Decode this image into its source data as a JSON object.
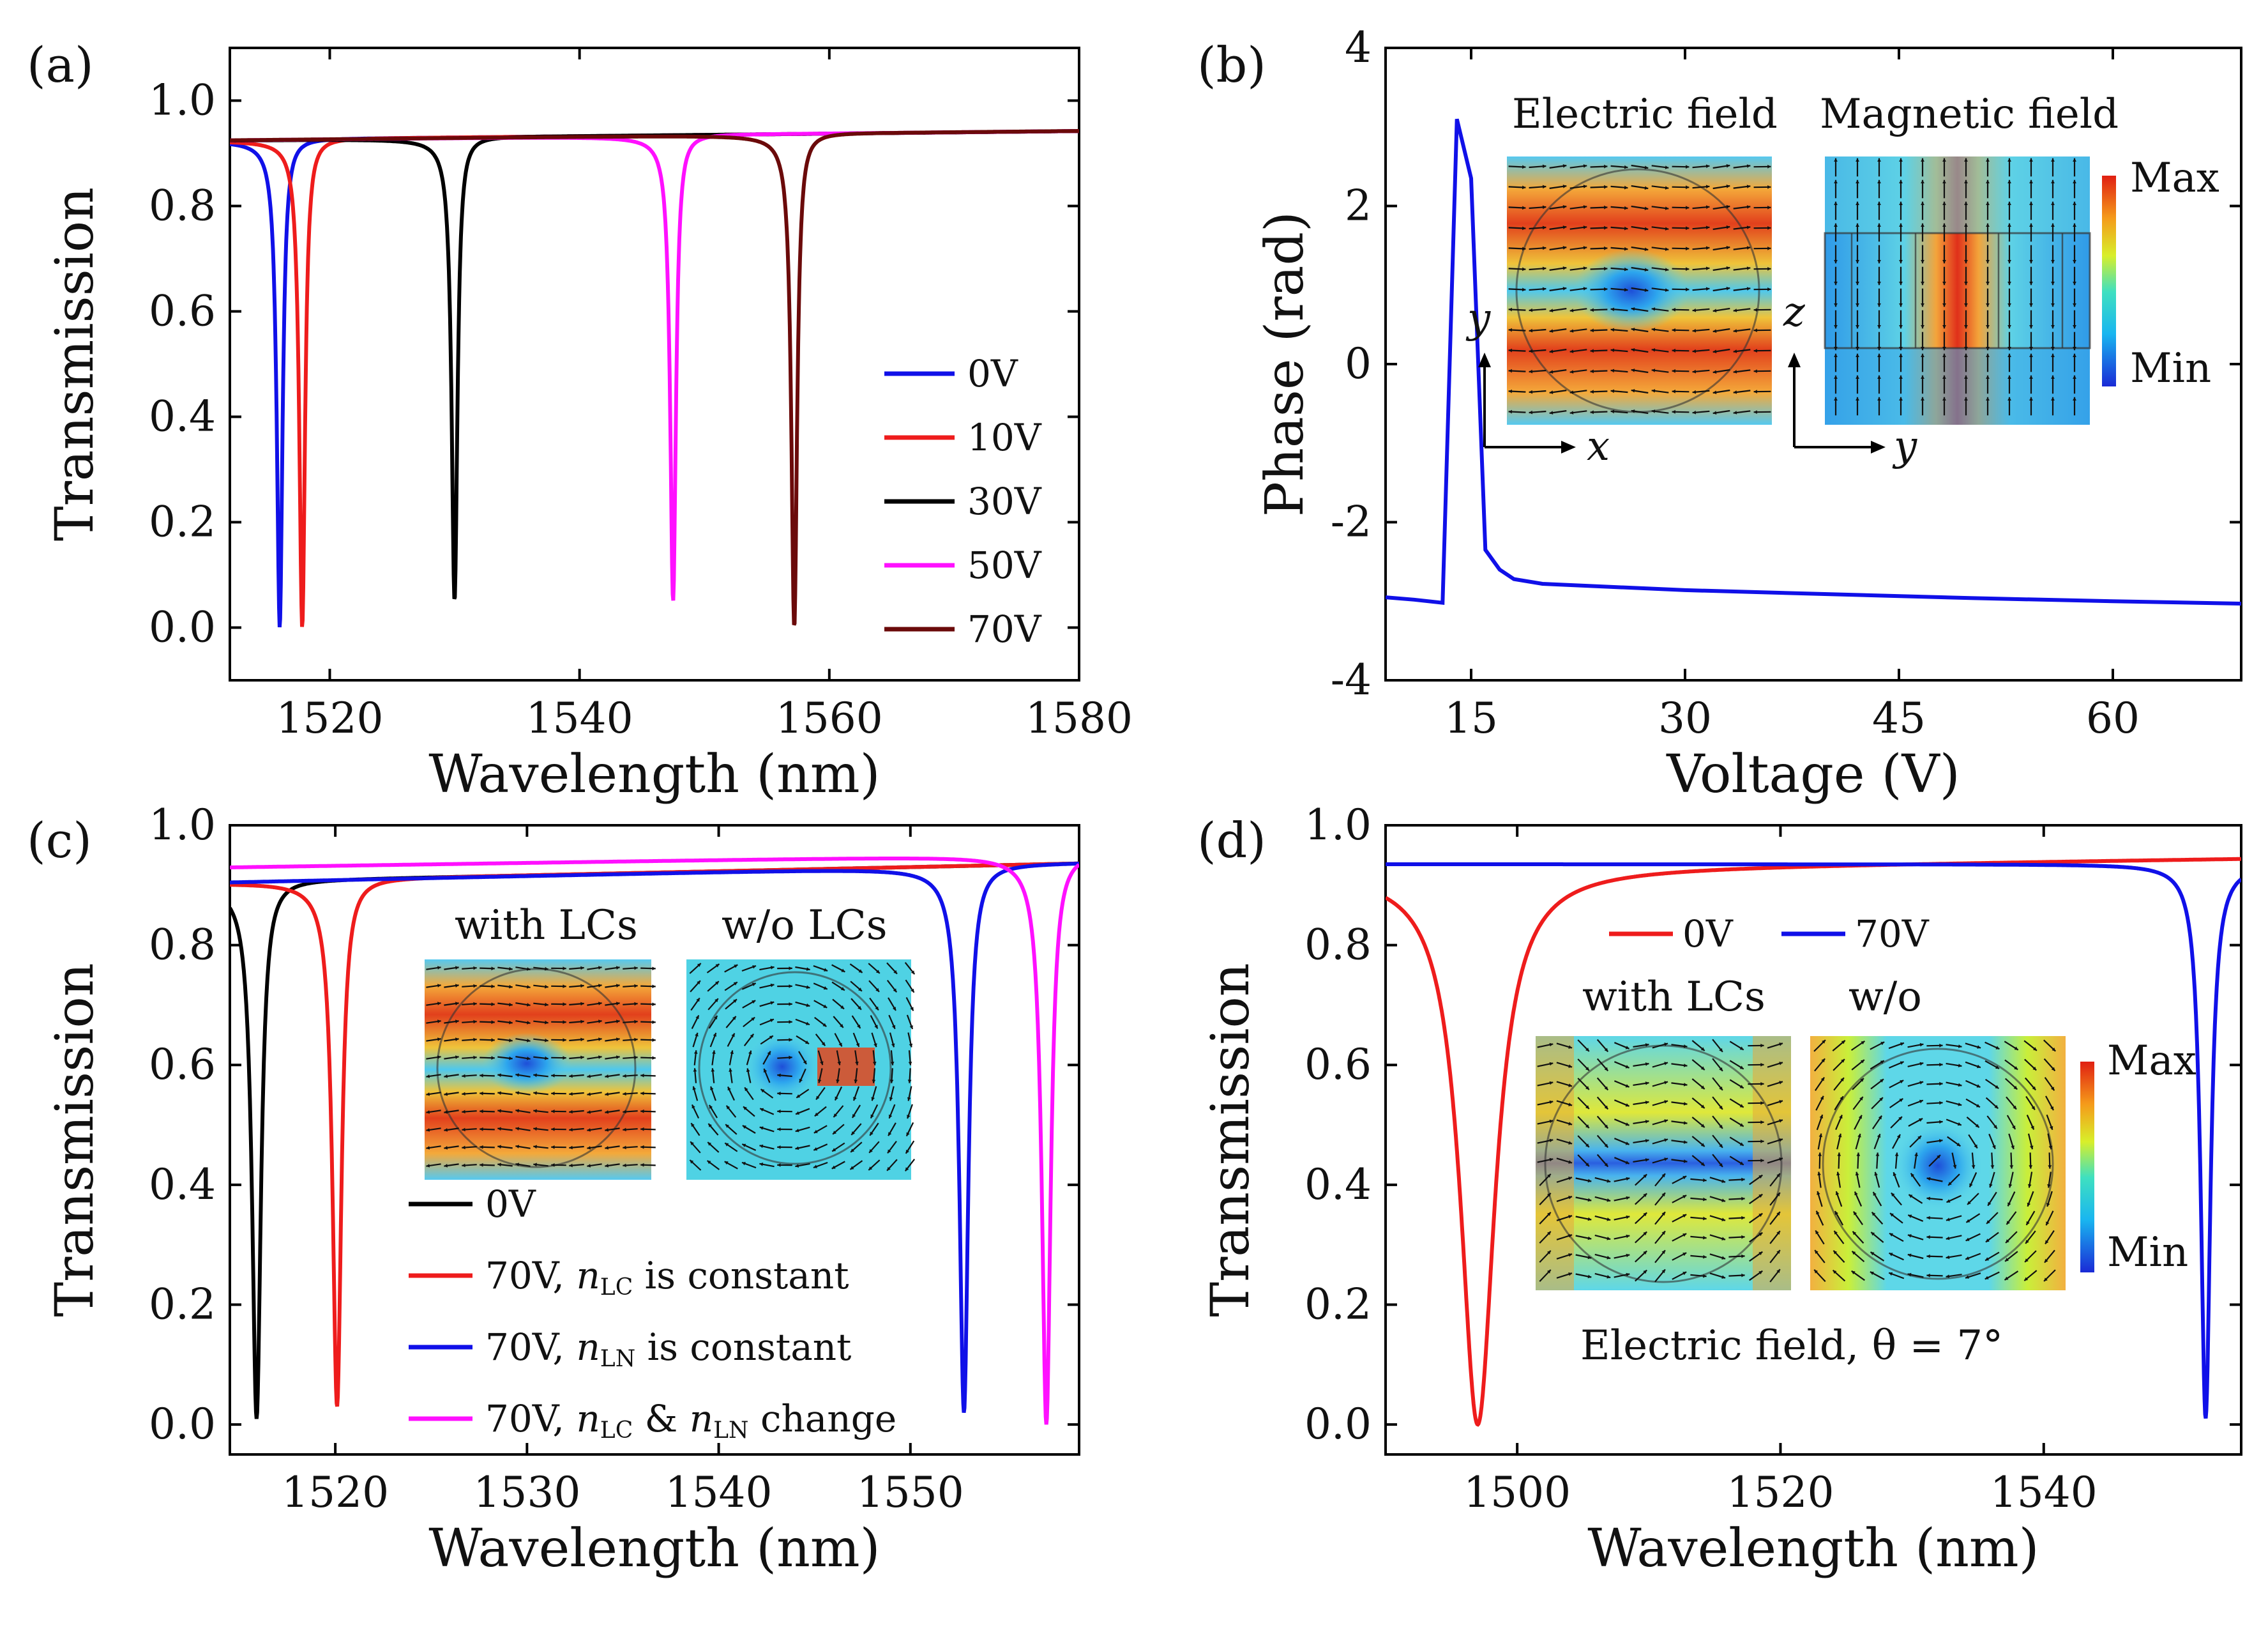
{
  "panels": {
    "a": {
      "label": "(a)"
    },
    "b": {
      "label": "(b)",
      "inset": {
        "title_left": "Electric field",
        "title_right": "Magnetic field",
        "max": "Max",
        "min": "Min",
        "axes_left": [
          "x",
          "y"
        ],
        "axes_right": [
          "y",
          "z"
        ]
      }
    },
    "c": {
      "label": "(c)",
      "inset": {
        "title_left": "with LCs",
        "title_right": "w/o LCs"
      }
    },
    "d": {
      "label": "(d)",
      "inset": {
        "title_left": "with LCs",
        "title_right": "w/o",
        "max": "Max",
        "min": "Min",
        "caption": "Electric field,  θ = 7°"
      }
    }
  },
  "colors": {
    "blue": "#1010e8",
    "red": "#ee1c1c",
    "black": "#000000",
    "magenta": "#ff10ff",
    "darkred": "#6b0a0a"
  },
  "chart_data": [
    {
      "id": "a",
      "type": "line",
      "xlabel": "Wavelength (nm)",
      "ylabel": "Transmission",
      "xlim": [
        1512,
        1580
      ],
      "ylim": [
        -0.1,
        1.1
      ],
      "xticks": [
        1520,
        1540,
        1560,
        1580
      ],
      "yticks": [
        0.0,
        0.2,
        0.4,
        0.6,
        0.8,
        1.0
      ],
      "legend_position": "right",
      "series": [
        {
          "name": "0V",
          "color": "#1010e8",
          "resonance_nm": 1516.0,
          "min": 0.0,
          "fano": -1
        },
        {
          "name": "10V",
          "color": "#ee1c1c",
          "resonance_nm": 1517.8,
          "min": 0.0,
          "fano": -1
        },
        {
          "name": "30V",
          "color": "#000000",
          "resonance_nm": 1530.0,
          "min": 0.05,
          "fano": -1
        },
        {
          "name": "50V",
          "color": "#ff10ff",
          "resonance_nm": 1547.5,
          "min": 0.05,
          "fano": -1
        },
        {
          "name": "70V",
          "color": "#6b0a0a",
          "resonance_nm": 1557.2,
          "min": 0.0,
          "fano": -1
        }
      ]
    },
    {
      "id": "b",
      "type": "line",
      "xlabel": "Voltage (V)",
      "ylabel": "Phase (rad)",
      "xlim": [
        9,
        69
      ],
      "ylim": [
        -4,
        4
      ],
      "xticks": [
        15,
        30,
        45,
        60
      ],
      "yticks": [
        -4,
        -2,
        0,
        2,
        4
      ],
      "series": [
        {
          "name": "phase",
          "color": "#1010e8",
          "x": [
            9,
            11,
            13,
            14,
            15,
            16,
            17,
            18,
            20,
            25,
            30,
            40,
            50,
            60,
            69
          ],
          "y": [
            -2.95,
            -2.98,
            -3.02,
            3.1,
            2.35,
            -2.35,
            -2.6,
            -2.72,
            -2.78,
            -2.82,
            -2.86,
            -2.91,
            -2.96,
            -3.0,
            -3.03
          ]
        }
      ]
    },
    {
      "id": "c",
      "type": "line",
      "xlabel": "Wavelength (nm)",
      "ylabel": "Transmission",
      "xlim": [
        1514.5,
        1558.8
      ],
      "ylim": [
        -0.05,
        1.0
      ],
      "xticks": [
        1520,
        1530,
        1540,
        1550
      ],
      "yticks": [
        0.0,
        0.2,
        0.4,
        0.6,
        0.8,
        1.0
      ],
      "legend_position": "bottom-center",
      "series": [
        {
          "name": "0V",
          "color": "#000000",
          "resonance_nm": 1515.9,
          "min": 0.01,
          "fano": -1
        },
        {
          "name": "70V, n_LC is constant",
          "color": "#ee1c1c",
          "resonance_nm": 1520.1,
          "min": 0.03,
          "fano": -1
        },
        {
          "name": "70V, n_LN is constant",
          "color": "#1010e8",
          "resonance_nm": 1552.8,
          "min": 0.02,
          "fano": -1
        },
        {
          "name": "70V, n_LC & n_LN change",
          "color": "#ff10ff",
          "resonance_nm": 1557.1,
          "min": 0.0,
          "fano": -1
        }
      ],
      "legend_entries": [
        {
          "text": "0V",
          "color": "#000000",
          "sym1": "",
          "sub1": "",
          "mid": "",
          "sym2": "",
          "sub2": "",
          "tail": ""
        },
        {
          "text": "70V, ",
          "color": "#ee1c1c",
          "sym1": "n",
          "sub1": "LC",
          "mid": " is constant",
          "sym2": "",
          "sub2": "",
          "tail": ""
        },
        {
          "text": "70V, ",
          "color": "#1010e8",
          "sym1": "n",
          "sub1": "LN",
          "mid": " is constant",
          "sym2": "",
          "sub2": "",
          "tail": ""
        },
        {
          "text": "70V, ",
          "color": "#ff10ff",
          "sym1": "n",
          "sub1": "LC",
          "mid": " & ",
          "sym2": "n",
          "sub2": "LN",
          "tail": " change"
        }
      ]
    },
    {
      "id": "d",
      "type": "line",
      "xlabel": "Wavelength (nm)",
      "ylabel": "Transmission",
      "xlim": [
        1490,
        1555
      ],
      "ylim": [
        -0.05,
        1.0
      ],
      "xticks": [
        1500,
        1520,
        1540
      ],
      "yticks": [
        0.0,
        0.2,
        0.4,
        0.6,
        0.8,
        1.0
      ],
      "legend_position": "top-center",
      "series": [
        {
          "name": "0V",
          "color": "#ee1c1c",
          "resonance_nm": 1497.0,
          "min": 0.0,
          "fano": 0,
          "width": 1.6
        },
        {
          "name": "70V",
          "color": "#1010e8",
          "resonance_nm": 1552.3,
          "min": 0.01,
          "fano": 0,
          "width": 0.45
        }
      ]
    }
  ]
}
